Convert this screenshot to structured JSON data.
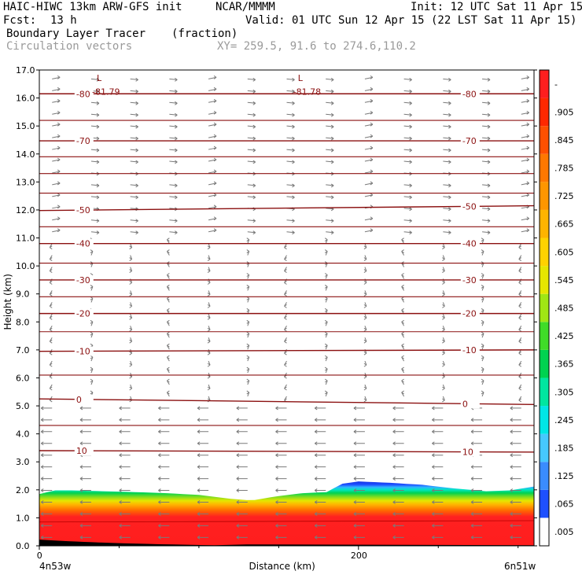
{
  "header": {
    "model": "HAIC-HIWC 13km ARW-GFS init",
    "org": "NCAR/MMMM",
    "init": "Init: 12 UTC Sat 11 Apr 15",
    "fcst_label": "Fcst:",
    "fcst_value": "13 h",
    "valid": "Valid: 01 UTC Sun 12 Apr 15 (22 LST Sat 11 Apr 15)",
    "field": "Boundary Layer Tracer",
    "field_units": "(fraction)",
    "vectors": "Circulation vectors",
    "xy": "XY= 259.5, 91.6 to 274.6,110.2"
  },
  "chart_data": {
    "type": "heatmap",
    "xlabel": "Distance (km)",
    "ylabel": "Height (km)",
    "xlim": [
      0,
      310
    ],
    "ylim": [
      0.0,
      17.0
    ],
    "x_ticks": [
      {
        "v": 0,
        "label": "0"
      },
      {
        "v": 200,
        "label": "200"
      }
    ],
    "x_end_labels": {
      "left": "4n53w",
      "right": "6n51w"
    },
    "y_ticks": [
      "0.0",
      "1.0",
      "2.0",
      "3.0",
      "4.0",
      "5.0",
      "6.0",
      "7.0",
      "8.0",
      "9.0",
      "10.0",
      "11.0",
      "12.0",
      "13.0",
      "14.0",
      "15.0",
      "16.0",
      "17.0"
    ],
    "colorbar_labels": [
      ".005",
      ".065",
      ".125",
      ".185",
      ".245",
      ".305",
      ".365",
      ".425",
      ".485",
      ".545",
      ".605",
      ".665",
      ".725",
      ".785",
      ".845",
      ".905",
      "-"
    ],
    "colorbar_colors": [
      "#ffffff",
      "#1e50ff",
      "#3a8cff",
      "#46c8ff",
      "#00e6e6",
      "#00e6a0",
      "#00d250",
      "#40dc28",
      "#a0e614",
      "#e6e600",
      "#ffd200",
      "#ffb400",
      "#ff9600",
      "#ff7800",
      "#ff5000",
      "#ff2800",
      "#ff1e1e"
    ],
    "pbl_top_km": [
      [
        0,
        1.85
      ],
      [
        10,
        1.98
      ],
      [
        20,
        1.98
      ],
      [
        40,
        1.95
      ],
      [
        60,
        1.92
      ],
      [
        80,
        1.88
      ],
      [
        100,
        1.82
      ],
      [
        120,
        1.68
      ],
      [
        133,
        1.62
      ],
      [
        150,
        1.78
      ],
      [
        165,
        1.88
      ],
      [
        180,
        1.92
      ],
      [
        190,
        2.22
      ],
      [
        200,
        2.3
      ],
      [
        220,
        2.25
      ],
      [
        240,
        2.18
      ],
      [
        260,
        2.05
      ],
      [
        280,
        1.95
      ],
      [
        295,
        1.98
      ],
      [
        310,
        2.12
      ]
    ],
    "isotherms_c": [
      {
        "c": "10",
        "y": [
          3.4,
          3.35
        ]
      },
      {
        "c": "0",
        "y": [
          5.25,
          5.05
        ]
      },
      {
        "c": "-10",
        "y": [
          6.95,
          7.0
        ]
      },
      {
        "c": "-20",
        "y": [
          8.3,
          8.3
        ]
      },
      {
        "c": "-30",
        "y": [
          9.5,
          9.5
        ]
      },
      {
        "c": "-40",
        "y": [
          10.8,
          10.8
        ]
      },
      {
        "c": "-50",
        "y": [
          11.98,
          12.15
        ]
      },
      {
        "c": "-70",
        "y": [
          14.47,
          14.47
        ]
      },
      {
        "c": "-80",
        "y": [
          16.15,
          16.15
        ]
      }
    ],
    "extra_isotherms_km": [
      4.3,
      6.1,
      7.65,
      8.9,
      10.1,
      11.4,
      12.6,
      13.3,
      13.9,
      15.2
    ],
    "pressure_lows": [
      {
        "mark": "L",
        "label": "-81.79",
        "x": 36
      },
      {
        "mark": "L",
        "label": "-81.78",
        "x": 162
      }
    ]
  }
}
